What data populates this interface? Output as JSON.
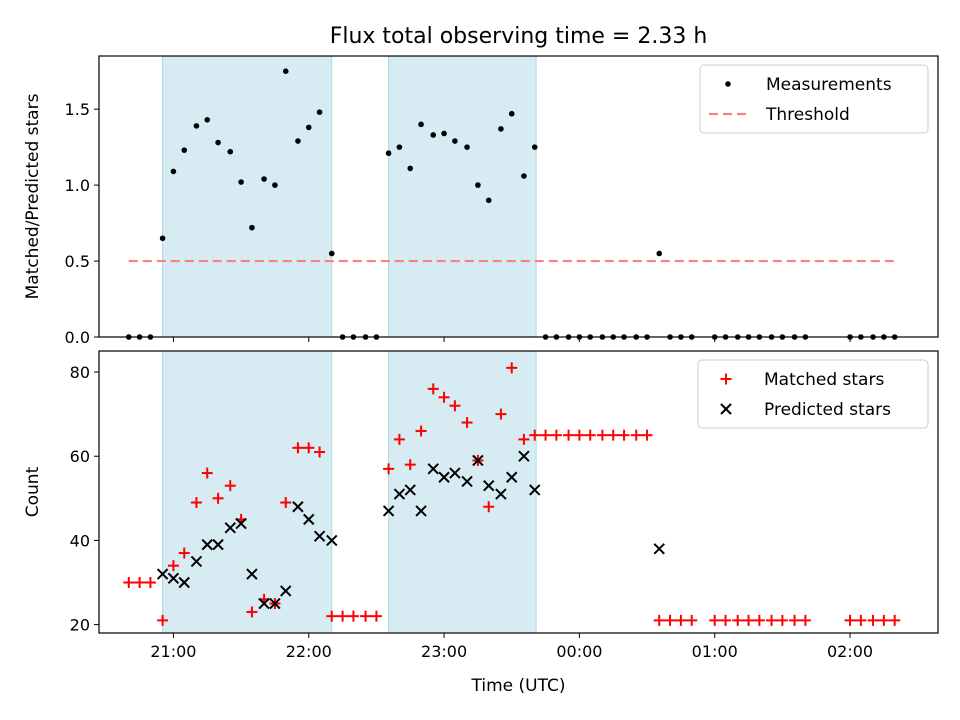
{
  "figure": {
    "title": "Flux total observing time = 2.33 h",
    "xlabel": "Time (UTC)",
    "x_ticks": [
      {
        "h": 21.0,
        "label": "21:00"
      },
      {
        "h": 22.0,
        "label": "22:00"
      },
      {
        "h": 23.0,
        "label": "23:00"
      },
      {
        "h": 24.0,
        "label": "00:00"
      },
      {
        "h": 25.0,
        "label": "01:00"
      },
      {
        "h": 26.0,
        "label": "02:00"
      }
    ],
    "xlim": [
      20.45,
      26.65
    ],
    "shaded_intervals": [
      [
        20.92,
        22.17
      ],
      [
        22.59,
        23.68
      ]
    ],
    "shade_color": "#add8e6"
  },
  "chart_data": [
    {
      "type": "scatter",
      "ylabel": "Matched/Predicted stars",
      "ylim": [
        0.0,
        1.85
      ],
      "y_ticks": [
        {
          "v": 0.0,
          "label": "0.0"
        },
        {
          "v": 0.5,
          "label": "0.5"
        },
        {
          "v": 1.0,
          "label": "1.0"
        },
        {
          "v": 1.5,
          "label": "1.5"
        }
      ],
      "legend_position": "top-right",
      "series": [
        {
          "name": "Measurements",
          "marker": "dot",
          "color": "#000000",
          "points": [
            [
              20.67,
              0.0
            ],
            [
              20.75,
              0.0
            ],
            [
              20.83,
              0.0
            ],
            [
              20.92,
              0.65
            ],
            [
              21.0,
              1.09
            ],
            [
              21.08,
              1.23
            ],
            [
              21.17,
              1.39
            ],
            [
              21.25,
              1.43
            ],
            [
              21.33,
              1.28
            ],
            [
              21.42,
              1.22
            ],
            [
              21.5,
              1.02
            ],
            [
              21.58,
              0.72
            ],
            [
              21.67,
              1.04
            ],
            [
              21.75,
              1.0
            ],
            [
              21.83,
              1.75
            ],
            [
              21.92,
              1.29
            ],
            [
              22.0,
              1.38
            ],
            [
              22.08,
              1.48
            ],
            [
              22.17,
              0.55
            ],
            [
              22.25,
              0.0
            ],
            [
              22.33,
              0.0
            ],
            [
              22.42,
              0.0
            ],
            [
              22.5,
              0.0
            ],
            [
              22.59,
              1.21
            ],
            [
              22.67,
              1.25
            ],
            [
              22.75,
              1.11
            ],
            [
              22.83,
              1.4
            ],
            [
              22.92,
              1.33
            ],
            [
              23.0,
              1.34
            ],
            [
              23.08,
              1.29
            ],
            [
              23.17,
              1.25
            ],
            [
              23.25,
              1.0
            ],
            [
              23.33,
              0.9
            ],
            [
              23.42,
              1.37
            ],
            [
              23.5,
              1.47
            ],
            [
              23.59,
              1.06
            ],
            [
              23.67,
              1.25
            ],
            [
              23.75,
              0.0
            ],
            [
              23.83,
              0.0
            ],
            [
              23.92,
              0.0
            ],
            [
              24.0,
              0.0
            ],
            [
              24.08,
              0.0
            ],
            [
              24.17,
              0.0
            ],
            [
              24.25,
              0.0
            ],
            [
              24.33,
              0.0
            ],
            [
              24.42,
              0.0
            ],
            [
              24.5,
              0.0
            ],
            [
              24.59,
              0.55
            ],
            [
              24.67,
              0.0
            ],
            [
              24.75,
              0.0
            ],
            [
              24.83,
              0.0
            ],
            [
              25.0,
              0.0
            ],
            [
              25.08,
              0.0
            ],
            [
              25.17,
              0.0
            ],
            [
              25.25,
              0.0
            ],
            [
              25.33,
              0.0
            ],
            [
              25.42,
              0.0
            ],
            [
              25.5,
              0.0
            ],
            [
              25.59,
              0.0
            ],
            [
              25.67,
              0.0
            ],
            [
              26.0,
              0.0
            ],
            [
              26.08,
              0.0
            ],
            [
              26.17,
              0.0
            ],
            [
              26.25,
              0.0
            ],
            [
              26.33,
              0.0
            ]
          ]
        },
        {
          "name": "Threshold",
          "marker": "dashed-line",
          "color": "#ff7f7f",
          "points": [
            [
              20.67,
              0.5
            ],
            [
              26.33,
              0.5
            ]
          ]
        }
      ]
    },
    {
      "type": "scatter",
      "ylabel": "Count",
      "xlabel": "Time (UTC)",
      "ylim": [
        18,
        85
      ],
      "y_ticks": [
        {
          "v": 20,
          "label": "20"
        },
        {
          "v": 40,
          "label": "40"
        },
        {
          "v": 60,
          "label": "60"
        },
        {
          "v": 80,
          "label": "80"
        }
      ],
      "legend_position": "top-right",
      "series": [
        {
          "name": "Matched stars",
          "marker": "plus",
          "color": "#ff0000",
          "points": [
            [
              20.67,
              30
            ],
            [
              20.75,
              30
            ],
            [
              20.83,
              30
            ],
            [
              20.92,
              21
            ],
            [
              21.0,
              34
            ],
            [
              21.08,
              37
            ],
            [
              21.17,
              49
            ],
            [
              21.25,
              56
            ],
            [
              21.33,
              50
            ],
            [
              21.42,
              53
            ],
            [
              21.5,
              45
            ],
            [
              21.58,
              23
            ],
            [
              21.67,
              26
            ],
            [
              21.75,
              25
            ],
            [
              21.83,
              49
            ],
            [
              21.92,
              62
            ],
            [
              22.0,
              62
            ],
            [
              22.08,
              61
            ],
            [
              22.17,
              22
            ],
            [
              22.25,
              22
            ],
            [
              22.33,
              22
            ],
            [
              22.42,
              22
            ],
            [
              22.5,
              22
            ],
            [
              22.59,
              57
            ],
            [
              22.67,
              64
            ],
            [
              22.75,
              58
            ],
            [
              22.83,
              66
            ],
            [
              22.92,
              76
            ],
            [
              23.0,
              74
            ],
            [
              23.08,
              72
            ],
            [
              23.17,
              68
            ],
            [
              23.25,
              59
            ],
            [
              23.33,
              48
            ],
            [
              23.42,
              70
            ],
            [
              23.5,
              81
            ],
            [
              23.59,
              64
            ],
            [
              23.67,
              65
            ],
            [
              23.75,
              65
            ],
            [
              23.83,
              65
            ],
            [
              23.92,
              65
            ],
            [
              24.0,
              65
            ],
            [
              24.08,
              65
            ],
            [
              24.17,
              65
            ],
            [
              24.25,
              65
            ],
            [
              24.33,
              65
            ],
            [
              24.42,
              65
            ],
            [
              24.5,
              65
            ],
            [
              24.59,
              21
            ],
            [
              24.67,
              21
            ],
            [
              24.75,
              21
            ],
            [
              24.83,
              21
            ],
            [
              25.0,
              21
            ],
            [
              25.08,
              21
            ],
            [
              25.17,
              21
            ],
            [
              25.25,
              21
            ],
            [
              25.33,
              21
            ],
            [
              25.42,
              21
            ],
            [
              25.5,
              21
            ],
            [
              25.59,
              21
            ],
            [
              25.67,
              21
            ],
            [
              26.0,
              21
            ],
            [
              26.08,
              21
            ],
            [
              26.17,
              21
            ],
            [
              26.25,
              21
            ],
            [
              26.33,
              21
            ]
          ]
        },
        {
          "name": "Predicted stars",
          "marker": "cross",
          "color": "#000000",
          "points": [
            [
              20.92,
              32
            ],
            [
              21.0,
              31
            ],
            [
              21.08,
              30
            ],
            [
              21.17,
              35
            ],
            [
              21.25,
              39
            ],
            [
              21.33,
              39
            ],
            [
              21.42,
              43
            ],
            [
              21.5,
              44
            ],
            [
              21.58,
              32
            ],
            [
              21.67,
              25
            ],
            [
              21.75,
              25
            ],
            [
              21.83,
              28
            ],
            [
              21.92,
              48
            ],
            [
              22.0,
              45
            ],
            [
              22.08,
              41
            ],
            [
              22.17,
              40
            ],
            [
              22.59,
              47
            ],
            [
              22.67,
              51
            ],
            [
              22.75,
              52
            ],
            [
              22.83,
              47
            ],
            [
              22.92,
              57
            ],
            [
              23.0,
              55
            ],
            [
              23.08,
              56
            ],
            [
              23.17,
              54
            ],
            [
              23.25,
              59
            ],
            [
              23.33,
              53
            ],
            [
              23.42,
              51
            ],
            [
              23.5,
              55
            ],
            [
              23.59,
              60
            ],
            [
              23.67,
              52
            ],
            [
              24.59,
              38
            ]
          ]
        }
      ]
    }
  ]
}
